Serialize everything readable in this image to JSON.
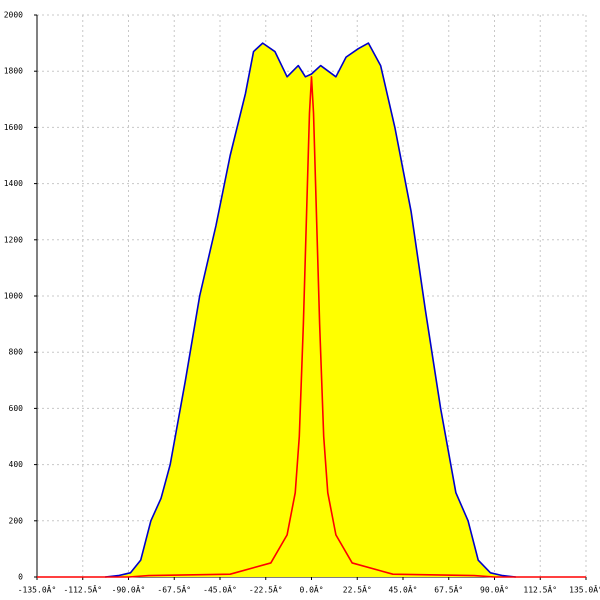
{
  "chart_data": {
    "type": "area",
    "xlim": [
      -135,
      135
    ],
    "ylim": [
      0,
      2000
    ],
    "yticks": [
      0,
      200,
      400,
      600,
      800,
      1000,
      1200,
      1400,
      1600,
      1800,
      2000
    ],
    "xticks": [
      {
        "value": -135,
        "label": "-135.0Â°"
      },
      {
        "value": -112.5,
        "label": "-112.5Â°"
      },
      {
        "value": -90,
        "label": "-90.0Â°"
      },
      {
        "value": -67.5,
        "label": "-67.5Â°"
      },
      {
        "value": -45,
        "label": "-45.0Â°"
      },
      {
        "value": -22.5,
        "label": "-22.5Â°"
      },
      {
        "value": 0,
        "label": "0.0Â°"
      },
      {
        "value": 22.5,
        "label": "22.5Â°"
      },
      {
        "value": 45,
        "label": "45.0Â°"
      },
      {
        "value": 67.5,
        "label": "67.5Â°"
      },
      {
        "value": 90,
        "label": "90.0Â°"
      },
      {
        "value": 112.5,
        "label": "112.5Â°"
      },
      {
        "value": 135,
        "label": "135.0Â°"
      }
    ],
    "grid": true,
    "series": [
      {
        "color": "#0000cc",
        "fill": "#ffff00",
        "x": [
          -101.5,
          -95,
          -89,
          -84,
          -79,
          -74,
          -69.5,
          -62,
          -55,
          -47,
          -40,
          -32.5,
          -28.5,
          -24,
          -18,
          -12,
          -6.5,
          -3,
          0,
          4.5,
          12,
          17,
          23,
          28,
          34,
          41,
          49,
          56,
          63.5,
          71,
          77,
          82,
          88,
          94,
          100.5
        ],
        "values": [
          0,
          5,
          15,
          60,
          200,
          280,
          400,
          700,
          1000,
          1250,
          1500,
          1720,
          1870,
          1900,
          1870,
          1780,
          1820,
          1780,
          1790,
          1820,
          1780,
          1850,
          1880,
          1900,
          1820,
          1600,
          1300,
          950,
          600,
          300,
          200,
          60,
          15,
          5,
          0
        ]
      },
      {
        "color": "#ff0000",
        "x": [
          -135,
          -90,
          -80,
          -40,
          -20,
          -12,
          -8,
          -6,
          -4,
          -2,
          -1,
          0,
          1,
          2,
          4,
          6,
          8,
          12,
          20,
          40,
          80,
          90,
          135
        ],
        "values": [
          0,
          0,
          5,
          10,
          50,
          150,
          300,
          500,
          900,
          1400,
          1650,
          1780,
          1650,
          1400,
          900,
          500,
          300,
          150,
          50,
          10,
          5,
          0,
          0
        ]
      }
    ]
  }
}
